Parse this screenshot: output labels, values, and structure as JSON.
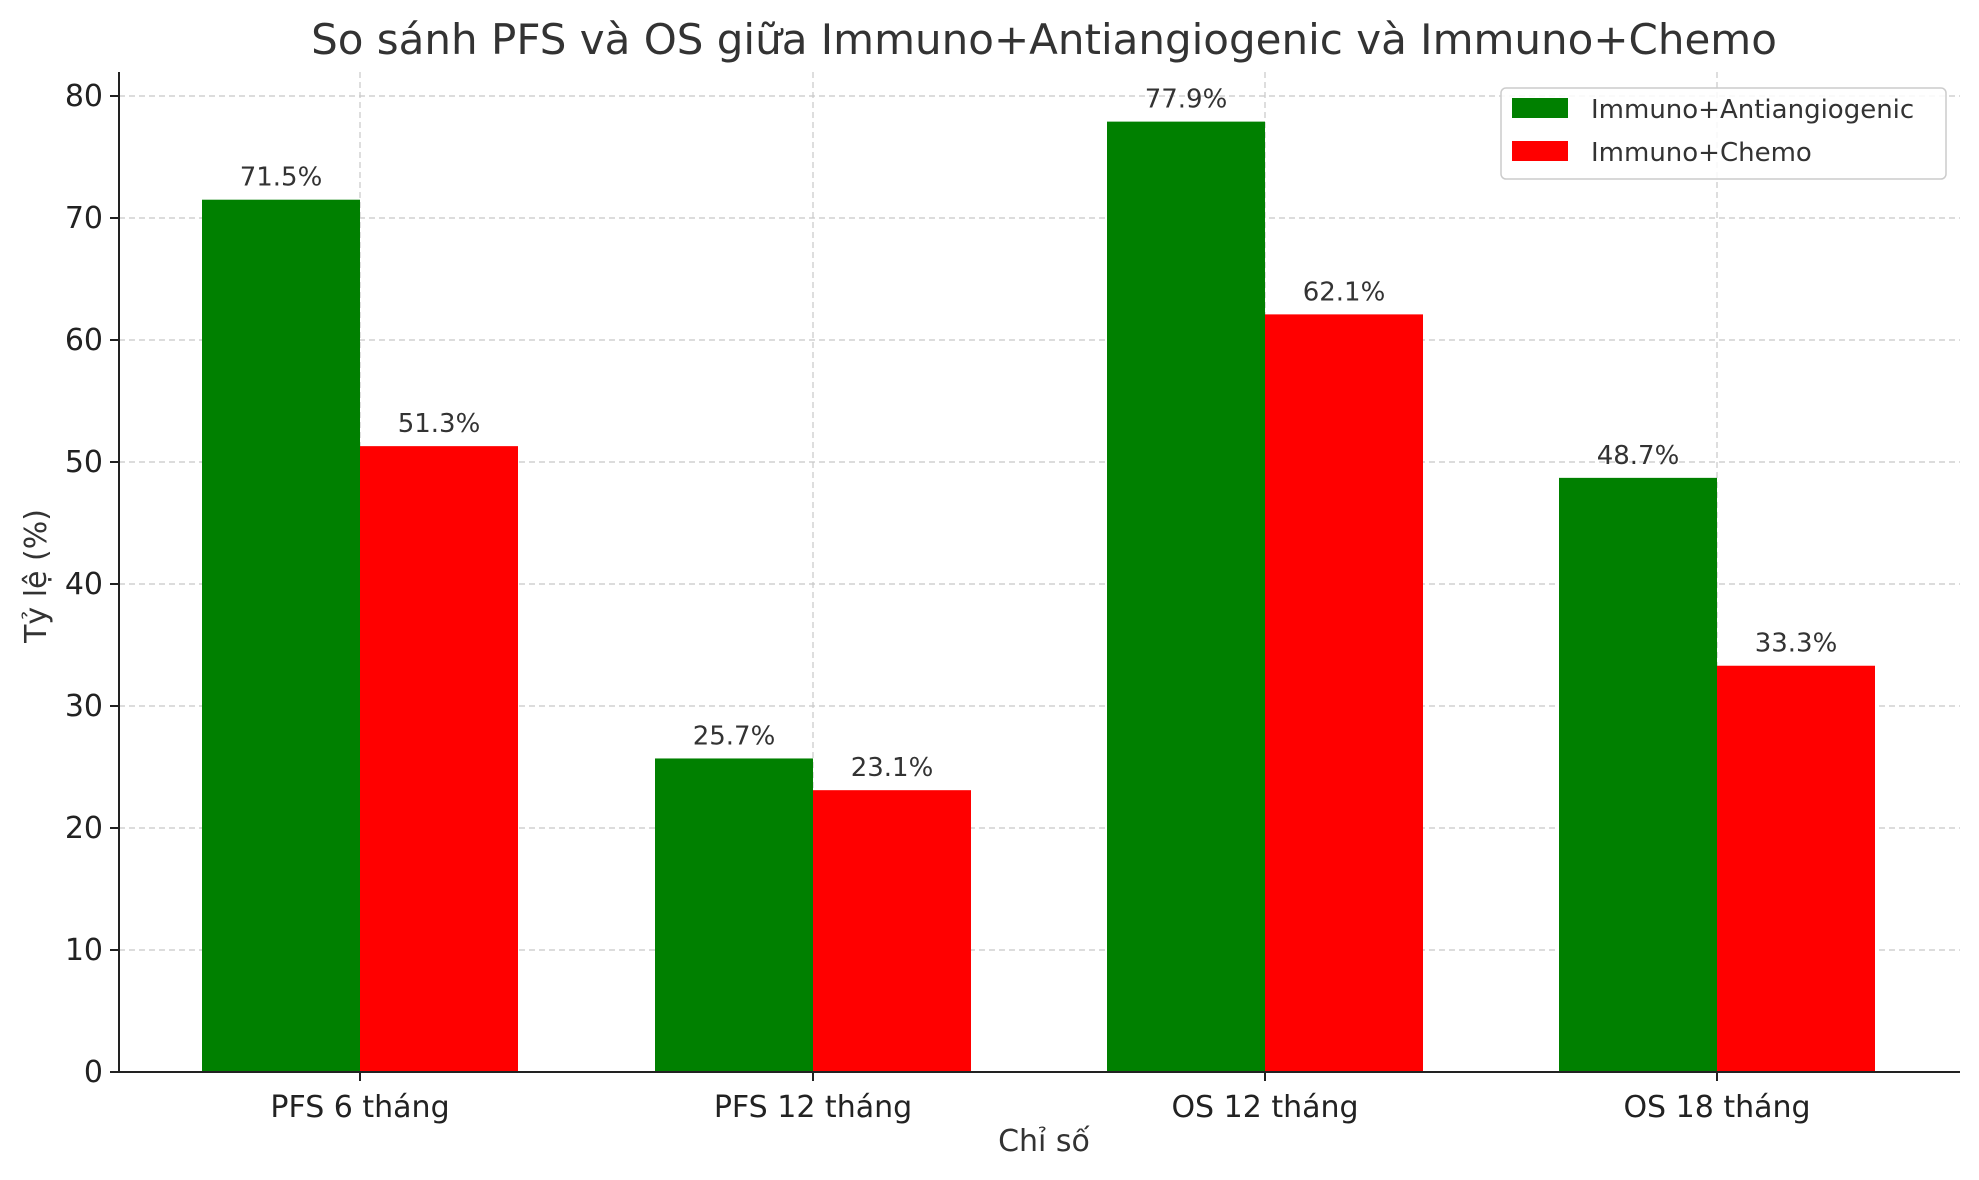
{
  "chart_data": {
    "type": "bar",
    "title": "So sánh PFS và OS giữa Immuno+Antiangiogenic và Immuno+Chemo",
    "xlabel": "Chỉ số",
    "ylabel": "Tỷ lệ (%)",
    "categories": [
      "PFS 6 tháng",
      "PFS 12 tháng",
      "OS 12 tháng",
      "OS 18 tháng"
    ],
    "series": [
      {
        "name": "Immuno+Antiangiogenic",
        "color": "#008000",
        "values": [
          71.5,
          25.7,
          77.9,
          48.7
        ],
        "labels": [
          "71.5%",
          "25.7%",
          "77.9%",
          "48.7%"
        ]
      },
      {
        "name": "Immuno+Chemo",
        "color": "#ff0000",
        "values": [
          51.3,
          23.1,
          62.1,
          33.3
        ],
        "labels": [
          "51.3%",
          "23.1%",
          "62.1%",
          "33.3%"
        ]
      }
    ],
    "ylim": [
      0,
      82
    ],
    "yticks": [
      0,
      10,
      20,
      30,
      40,
      50,
      60,
      70,
      80
    ],
    "grid": true,
    "legend_position": "top-right"
  }
}
